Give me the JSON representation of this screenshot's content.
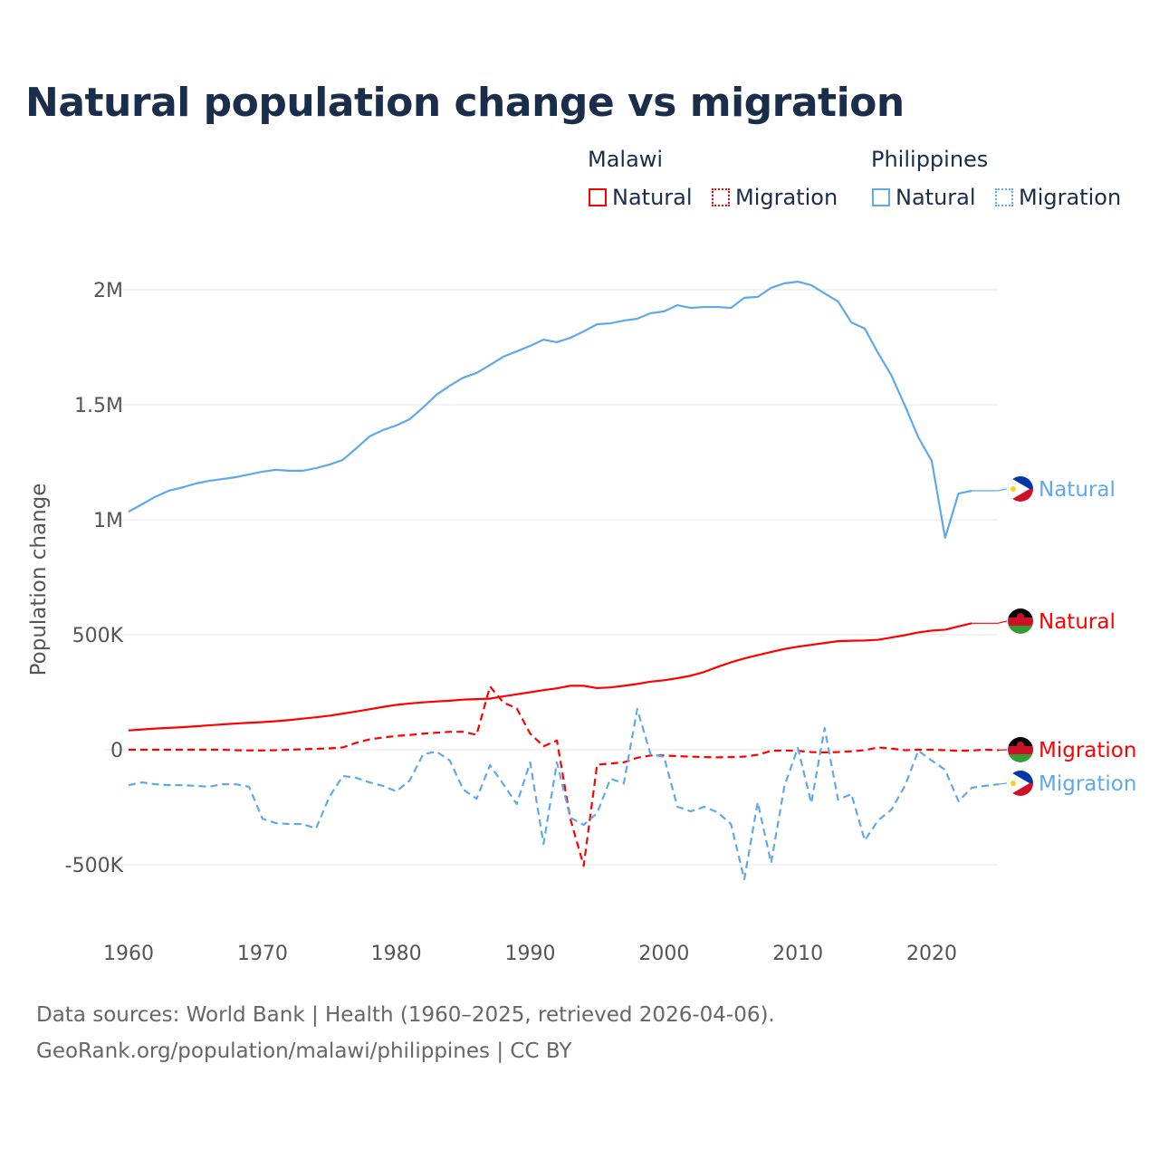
{
  "title": "Natural population change vs migration",
  "legend": {
    "groups": [
      {
        "name": "Malawi",
        "items": [
          "Natural",
          "Migration"
        ],
        "color": "#ff0000"
      },
      {
        "name": "Philippines",
        "items": [
          "Natural",
          "Migration"
        ],
        "color": "#5ea8ec"
      }
    ]
  },
  "footer": {
    "line1": "Data sources: World Bank | Health (1960–2025, retrieved 2026-04-06).",
    "line2": "GeoRank.org/population/malawi/philippines | CC BY"
  },
  "chart_data": {
    "type": "line",
    "title": "Natural population change vs migration",
    "xlabel": "",
    "ylabel": "Population change",
    "xlim": [
      1960,
      2025
    ],
    "ylim": [
      -500000,
      2000000
    ],
    "x_ticks": [
      1960,
      1970,
      1980,
      1990,
      2000,
      2010,
      2020
    ],
    "x_tick_labels": [
      "1960",
      "1970",
      "1980",
      "1990",
      "2000",
      "2010",
      "2020"
    ],
    "y_ticks": [
      -500000,
      0,
      500000,
      1000000,
      1500000,
      2000000
    ],
    "y_tick_labels": [
      "-500K",
      "0",
      "500K",
      "1M",
      "1.5M",
      "2M"
    ],
    "grid": true,
    "legend_position": "top-right",
    "start_year": 1960,
    "series": [
      {
        "name": "Philippines Natural",
        "label": "Natural",
        "color": "#5ea8ec",
        "dash": false,
        "flag": "philippines",
        "values": [
          1035000,
          1067000,
          1100000,
          1126000,
          1140000,
          1157000,
          1169000,
          1177000,
          1185000,
          1197000,
          1209000,
          1217000,
          1213000,
          1213000,
          1224000,
          1240000,
          1260000,
          1310000,
          1362000,
          1390000,
          1410000,
          1437000,
          1488000,
          1543000,
          1583000,
          1618000,
          1638000,
          1673000,
          1709000,
          1732000,
          1756000,
          1783000,
          1772000,
          1791000,
          1819000,
          1850000,
          1854000,
          1866000,
          1874000,
          1898000,
          1906000,
          1933000,
          1921000,
          1925000,
          1925000,
          1921000,
          1965000,
          1969000,
          2008000,
          2028000,
          2035000,
          2020000,
          1984000,
          1949000,
          1858000,
          1831000,
          1724000,
          1626000,
          1496000,
          1358000,
          1256000,
          921000,
          1114000,
          1126000
        ]
      },
      {
        "name": "Malawi Natural",
        "label": "Natural",
        "color": "#ff0000",
        "dash": false,
        "flag": "malawi",
        "values": [
          84000,
          88000,
          92000,
          95000,
          98000,
          102000,
          106000,
          110000,
          114000,
          117000,
          120000,
          124000,
          129000,
          135000,
          141000,
          148000,
          157000,
          166000,
          176000,
          186000,
          195000,
          201000,
          206000,
          210000,
          213000,
          218000,
          220000,
          222000,
          232000,
          241000,
          250000,
          259000,
          267000,
          278000,
          278000,
          268000,
          271000,
          278000,
          286000,
          296000,
          302000,
          311000,
          322000,
          338000,
          360000,
          380000,
          397000,
          411000,
          425000,
          438000,
          448000,
          456000,
          464000,
          472000,
          474000,
          475000,
          478000,
          488000,
          498000,
          510000,
          518000,
          522000,
          536000,
          550000
        ]
      },
      {
        "name": "Malawi Migration",
        "label": "Migration",
        "color": "#ff0000",
        "dash": true,
        "flag": "malawi",
        "values": [
          0,
          0,
          0,
          0,
          0,
          0,
          0,
          0,
          -2000,
          -3000,
          -3000,
          -2000,
          0,
          2000,
          4000,
          6000,
          10000,
          30000,
          45000,
          53000,
          60000,
          64000,
          70000,
          74000,
          78000,
          78000,
          65000,
          275000,
          205000,
          180000,
          70000,
          15000,
          40000,
          -300000,
          -505000,
          -65000,
          -60000,
          -55000,
          -35000,
          -25000,
          -25000,
          -28000,
          -30000,
          -32000,
          -33000,
          -32000,
          -30000,
          -22000,
          -5000,
          -3000,
          -5000,
          -10000,
          -12000,
          -10000,
          -7000,
          -2000,
          10000,
          5000,
          -2000,
          0,
          0,
          -2000,
          -5000,
          -3000,
          0,
          -2000
        ]
      },
      {
        "name": "Philippines Migration",
        "label": "Migration",
        "color": "#5ea8ec",
        "dash": true,
        "flag": "philippines",
        "values": [
          -154000,
          -142000,
          -150000,
          -154000,
          -154000,
          -157000,
          -161000,
          -150000,
          -150000,
          -161000,
          -300000,
          -319000,
          -323000,
          -323000,
          -343000,
          -205000,
          -114000,
          -122000,
          -142000,
          -157000,
          -181000,
          -134000,
          -20000,
          -8000,
          -47000,
          -173000,
          -213000,
          -67000,
          -150000,
          -236000,
          -55000,
          -409000,
          -55000,
          -295000,
          -327000,
          -276000,
          -126000,
          -146000,
          177000,
          -20000,
          -31000,
          -248000,
          -268000,
          -248000,
          -272000,
          -323000,
          -563000,
          -228000,
          -492000,
          -157000,
          8000,
          -232000,
          94000,
          -217000,
          -193000,
          -394000,
          -307000,
          -260000,
          -157000,
          -4000,
          -47000,
          -87000,
          -224000,
          -165000,
          -157000,
          -150000
        ]
      }
    ]
  }
}
